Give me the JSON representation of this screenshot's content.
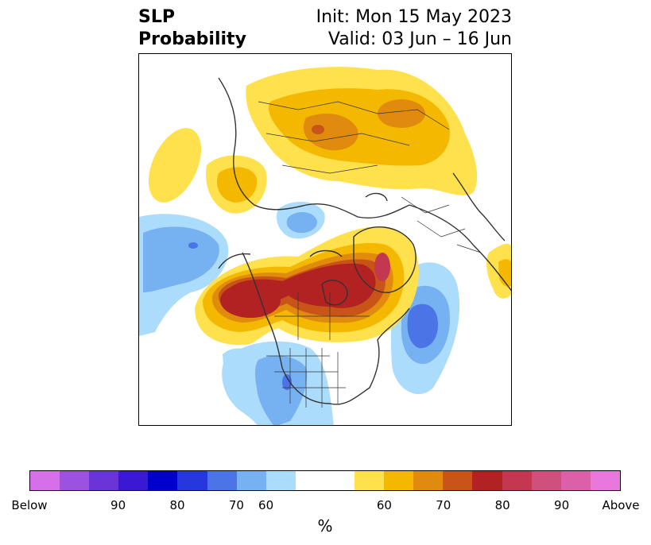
{
  "header": {
    "variable": "SLP",
    "product": "Probability",
    "init": "Init: Mon 15 May 2023",
    "valid": "Valid: 03 Jun – 16 Jun"
  },
  "colorbar": {
    "colors": [
      "#d670e8",
      "#9b52de",
      "#6a35d8",
      "#3a18d4",
      "#0000cc",
      "#2438dc",
      "#4b74e6",
      "#76b2f2",
      "#acdcfc",
      "#ffffff",
      "#ffffff",
      "#ffe14d",
      "#f4b800",
      "#e08a0e",
      "#c85418",
      "#b22222",
      "#c43750",
      "#cf4f7d",
      "#dc60a8",
      "#e878dc"
    ],
    "ticks": [
      "Below",
      "90",
      "80",
      "70",
      "60",
      "60",
      "70",
      "80",
      "90",
      "Above"
    ],
    "units": "%"
  },
  "palette": {
    "below_light": "#acdcfc",
    "below_mid": "#76b2f2",
    "below_strong": "#4b74e6",
    "above_light": "#ffe14d",
    "above_mid": "#f4b800",
    "above_orange": "#e08a0e",
    "above_brown": "#c85418",
    "above_red": "#b22222",
    "above_rose": "#c43750",
    "coast": "#333333"
  }
}
